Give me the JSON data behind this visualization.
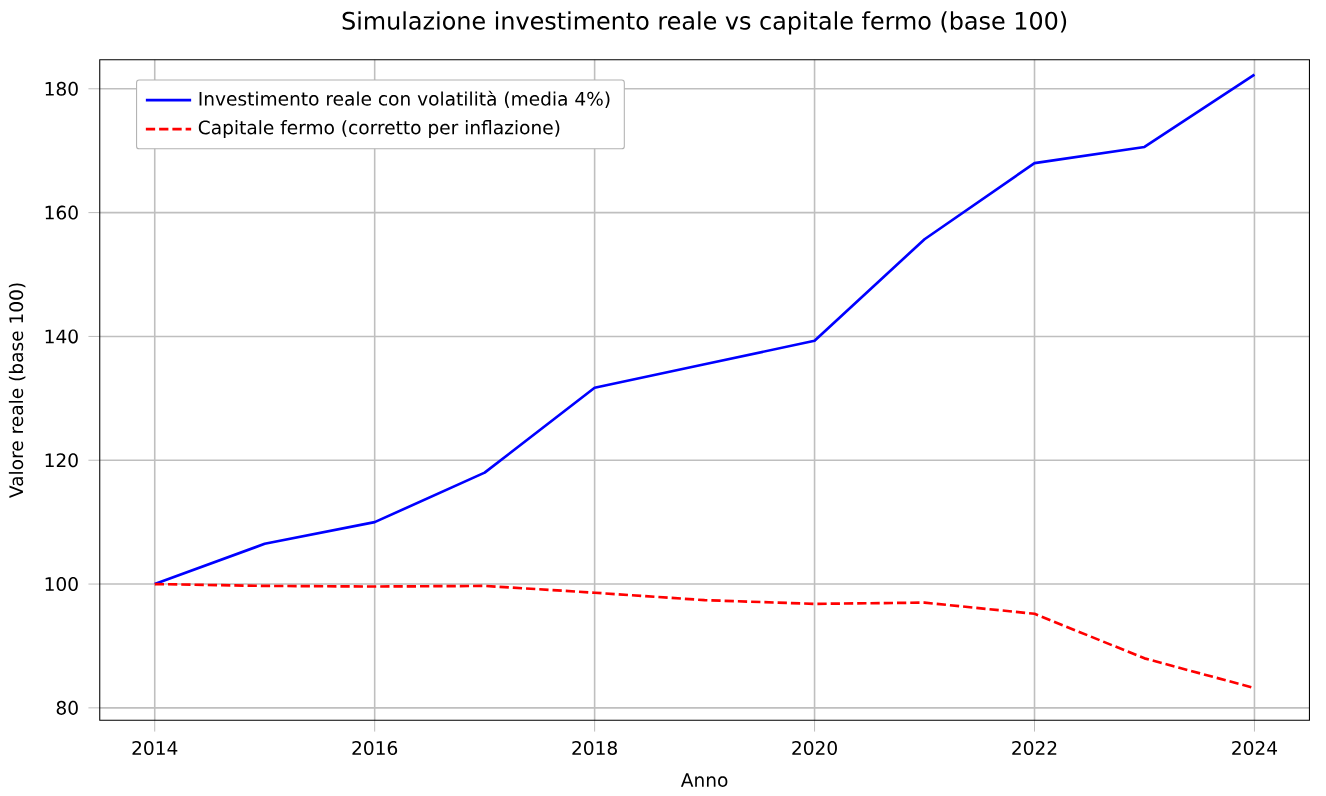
{
  "chart_data": {
    "type": "line",
    "title": "Simulazione investimento reale vs capitale fermo (base 100)",
    "xlabel": "Anno",
    "ylabel": "Valore reale (base 100)",
    "x": [
      2014,
      2015,
      2016,
      2017,
      2018,
      2019,
      2020,
      2021,
      2022,
      2023,
      2024
    ],
    "series": [
      {
        "name": "Investimento reale con volatilità (media 4%)",
        "color": "#0000ff",
        "line_style": "solid",
        "values": [
          100,
          106.5,
          110,
          118,
          131.7,
          135.5,
          139.3,
          155.7,
          168,
          170.6,
          182.3
        ]
      },
      {
        "name": "Capitale fermo (corretto per inflazione)",
        "color": "#ff0000",
        "line_style": "dashed",
        "values": [
          100,
          99.7,
          99.6,
          99.7,
          98.6,
          97.4,
          96.8,
          97.0,
          95.2,
          88.0,
          83.2
        ]
      }
    ],
    "xlim": [
      2013.5,
      2024.5
    ],
    "ylim": [
      78,
      184.7
    ],
    "xticks": [
      2014,
      2016,
      2018,
      2020,
      2022,
      2024
    ],
    "yticks": [
      80,
      100,
      120,
      140,
      160,
      180
    ],
    "grid": true,
    "legend": "top left"
  }
}
